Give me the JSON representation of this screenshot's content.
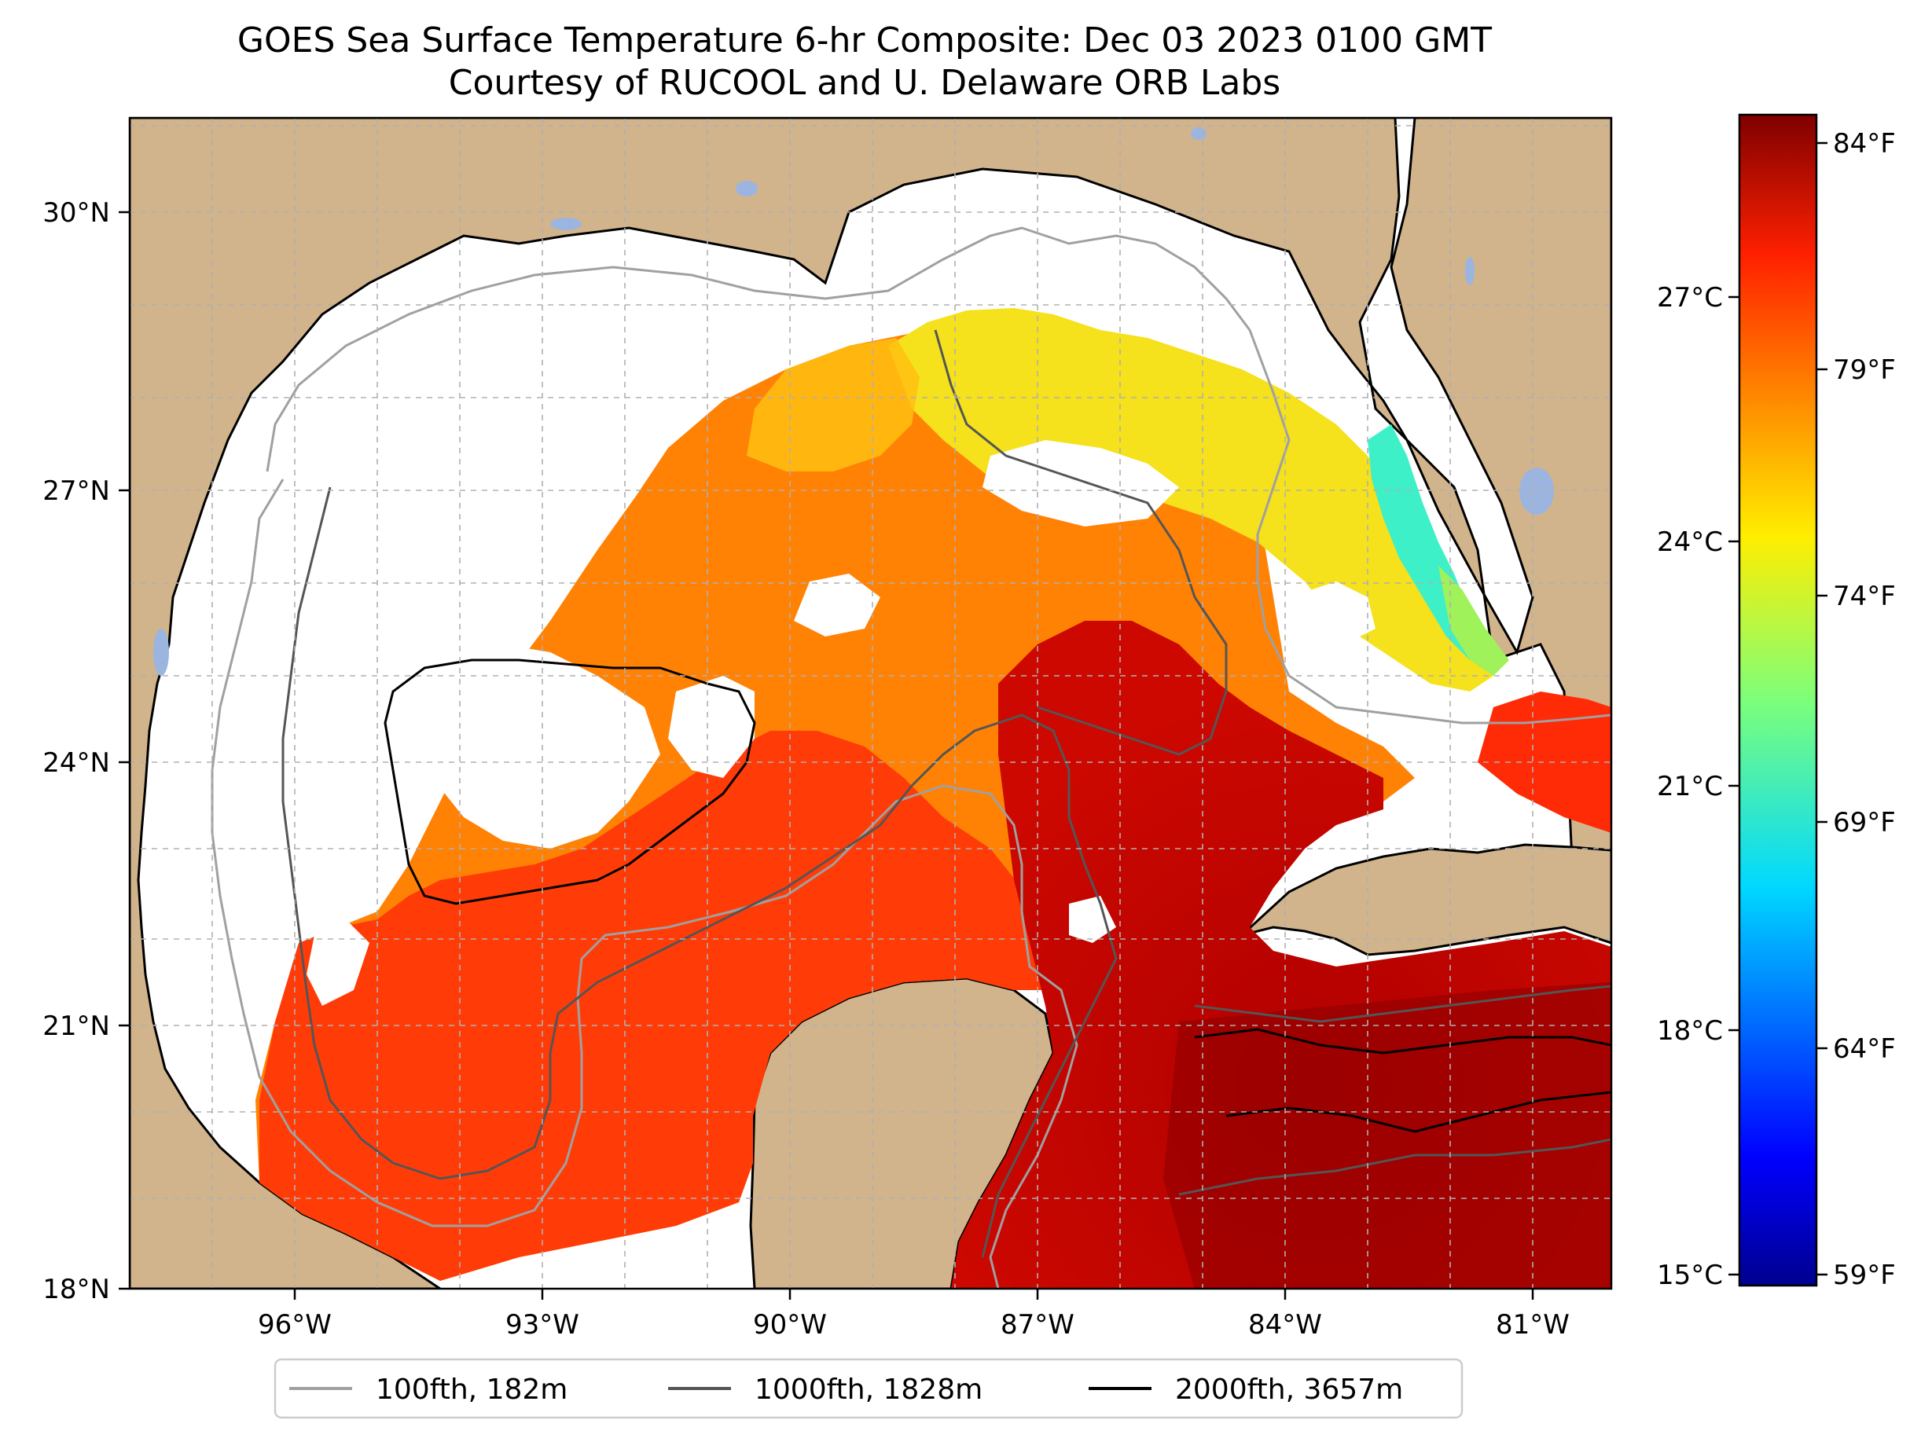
{
  "title": {
    "line1": "GOES Sea Surface Temperature 6-hr Composite: Dec 03 2023 0100 GMT",
    "line2": "Courtesy of RUCOOL and U. Delaware ORB Labs"
  },
  "map": {
    "lon_ticks": [
      "96°W",
      "93°W",
      "90°W",
      "87°W",
      "84°W",
      "81°W"
    ],
    "lat_ticks": [
      "30°N",
      "27°N",
      "24°N",
      "21°N",
      "18°N"
    ],
    "extent": {
      "lon_min": -98,
      "lon_max": -80,
      "lat_min": 18,
      "lat_max": 31
    },
    "colors": {
      "land": "#d2b48c",
      "water_no_data": "#ffffff",
      "lakes": "#9bb5e0",
      "grid": "#b0b0b0"
    }
  },
  "colorbar": {
    "celsius_ticks": [
      "27°C",
      "24°C",
      "21°C",
      "18°C",
      "15°C"
    ],
    "fahrenheit_ticks": [
      "84°F",
      "79°F",
      "74°F",
      "69°F",
      "64°F",
      "59°F"
    ],
    "colormap": "jet",
    "range_c": [
      15,
      29
    ]
  },
  "legend": {
    "items": [
      {
        "label": "100fth, 182m",
        "color": "#a0a0a0"
      },
      {
        "label": "1000fth, 1828m",
        "color": "#555555"
      },
      {
        "label": "2000fth, 3657m",
        "color": "#000000"
      }
    ]
  }
}
